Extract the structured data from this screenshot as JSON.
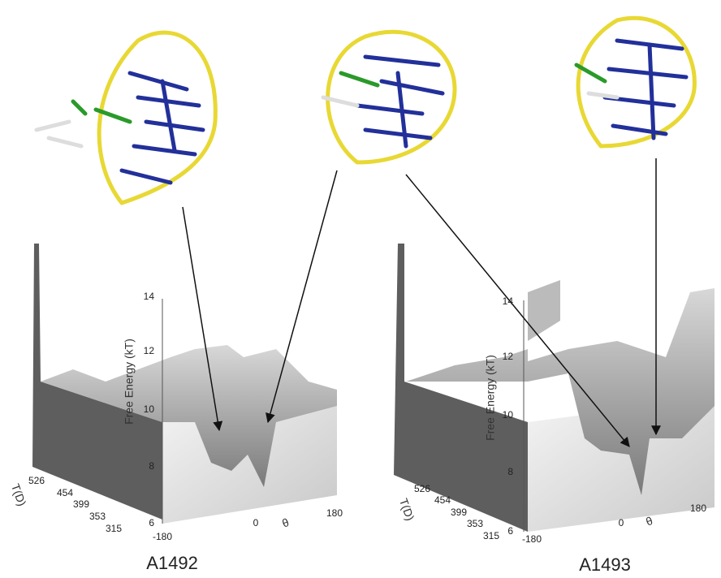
{
  "panels": [
    {
      "name": "A1492",
      "z_axis_label": "Free Energy (kT)",
      "z_ticks": [
        14,
        12,
        10,
        8,
        6
      ],
      "depth_axis_label": "T(D)",
      "depth_ticks": [
        526,
        454,
        399,
        353,
        315
      ],
      "theta_axis_label": "θ",
      "theta_ticks": [
        -180,
        0,
        180
      ]
    },
    {
      "name": "A1493",
      "z_axis_label": "Free Energy (kT)",
      "z_ticks": [
        14,
        12,
        10,
        8,
        6
      ],
      "depth_axis_label": "T(D)",
      "depth_ticks": [
        526,
        454,
        399,
        353,
        315
      ],
      "theta_axis_label": "θ",
      "theta_ticks": [
        -180,
        0,
        180
      ]
    }
  ]
}
